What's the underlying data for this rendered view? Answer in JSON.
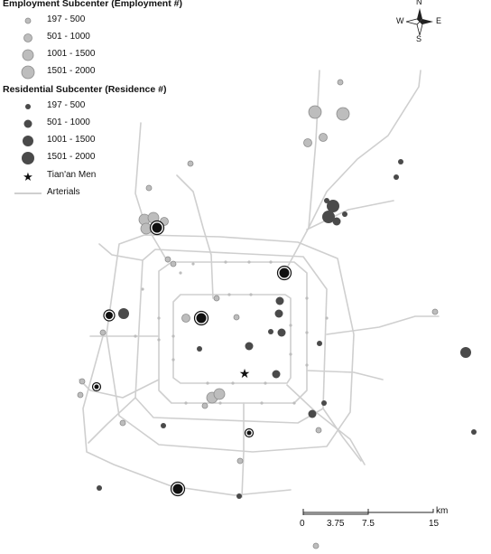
{
  "legend": {
    "employment": {
      "title": "Employment Subcenter (Employment #)",
      "classes": [
        "197 - 500",
        "501 - 1000",
        "1001 - 1500",
        "1501 - 2000"
      ],
      "fill": "#bdbdbd",
      "stroke": "#8c8c8c"
    },
    "residential": {
      "title": "Residential Subcenter (Residence #)",
      "classes": [
        "197 - 500",
        "501 - 1000",
        "1001 - 1500",
        "1501 - 2000"
      ],
      "fill": "#4a4a4a"
    },
    "landmark": {
      "label": "Tian'an Men",
      "icon": "star-icon"
    },
    "arterials": {
      "label": "Arterials",
      "color": "#cfcfcf"
    }
  },
  "compass": {
    "n": "N",
    "s": "S",
    "e": "E",
    "w": "W"
  },
  "scale": {
    "ticks": [
      "0",
      "3.75",
      "7.5",
      "15"
    ],
    "unit": "km"
  },
  "colors": {
    "background": "#ffffff",
    "road": "#cfcfcf",
    "node": "#bdbdbd",
    "star": "#111111"
  }
}
